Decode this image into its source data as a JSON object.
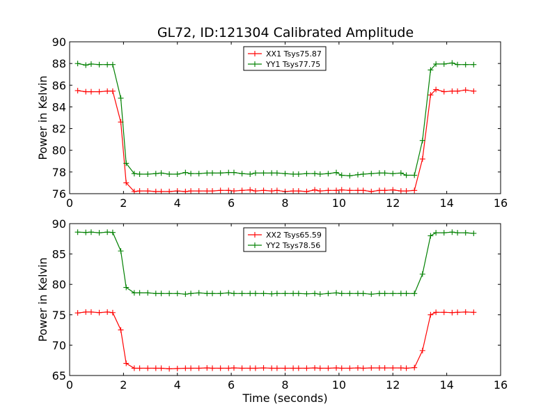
{
  "figure": {
    "title": "GL72, ID:121304 Calibrated Amplitude"
  },
  "chart_data": [
    {
      "type": "line",
      "title": "GL72, ID:121304 Calibrated Amplitude",
      "xlabel": "",
      "ylabel": "Power in Kelvin",
      "xlim": [
        0,
        16
      ],
      "ylim": [
        76,
        90
      ],
      "xticks": [
        0,
        2,
        4,
        6,
        8,
        10,
        12,
        14,
        16
      ],
      "yticks": [
        76,
        78,
        80,
        82,
        84,
        86,
        88,
        90
      ],
      "grid": false,
      "legend_position": "top-center",
      "x": [
        0.3,
        0.6,
        0.8,
        1.1,
        1.4,
        1.6,
        1.9,
        2.1,
        2.4,
        2.6,
        2.9,
        3.2,
        3.4,
        3.7,
        4.0,
        4.3,
        4.5,
        4.8,
        5.1,
        5.3,
        5.6,
        5.9,
        6.1,
        6.4,
        6.7,
        6.9,
        7.2,
        7.5,
        7.7,
        8.0,
        8.3,
        8.5,
        8.8,
        9.1,
        9.3,
        9.6,
        9.9,
        10.1,
        10.4,
        10.7,
        10.9,
        11.2,
        11.5,
        11.7,
        12.0,
        12.3,
        12.5,
        12.8,
        13.1,
        13.4,
        13.6,
        13.9,
        14.2,
        14.4,
        14.7,
        15.0
      ],
      "series": [
        {
          "name": "XX1 Tsys75.87",
          "color": "#ff0000",
          "values": [
            85.5,
            85.4,
            85.4,
            85.4,
            85.45,
            85.45,
            82.6,
            77.0,
            76.2,
            76.25,
            76.25,
            76.2,
            76.2,
            76.2,
            76.25,
            76.2,
            76.25,
            76.25,
            76.25,
            76.25,
            76.3,
            76.3,
            76.25,
            76.3,
            76.35,
            76.25,
            76.3,
            76.25,
            76.3,
            76.2,
            76.25,
            76.25,
            76.2,
            76.35,
            76.25,
            76.3,
            76.3,
            76.35,
            76.3,
            76.3,
            76.3,
            76.2,
            76.3,
            76.3,
            76.35,
            76.25,
            76.25,
            76.3,
            79.2,
            85.1,
            85.6,
            85.4,
            85.45,
            85.45,
            85.55,
            85.45
          ]
        },
        {
          "name": "YY1 Tsys77.75",
          "color": "#008000",
          "values": [
            88.0,
            87.85,
            87.95,
            87.9,
            87.9,
            87.9,
            84.8,
            78.8,
            77.85,
            77.8,
            77.8,
            77.85,
            77.9,
            77.8,
            77.8,
            77.95,
            77.85,
            77.85,
            77.9,
            77.9,
            77.9,
            77.95,
            77.95,
            77.85,
            77.8,
            77.9,
            77.9,
            77.9,
            77.9,
            77.85,
            77.8,
            77.8,
            77.85,
            77.85,
            77.8,
            77.85,
            77.95,
            77.7,
            77.65,
            77.75,
            77.8,
            77.85,
            77.9,
            77.9,
            77.85,
            77.9,
            77.7,
            77.7,
            80.9,
            87.4,
            87.95,
            87.95,
            88.05,
            87.9,
            87.9,
            87.9
          ]
        }
      ]
    },
    {
      "type": "line",
      "title": "",
      "xlabel": "Time (seconds)",
      "ylabel": "Power in Kelvin",
      "xlim": [
        0,
        16
      ],
      "ylim": [
        65,
        90
      ],
      "xticks": [
        0,
        2,
        4,
        6,
        8,
        10,
        12,
        14,
        16
      ],
      "yticks": [
        65,
        70,
        75,
        80,
        85,
        90
      ],
      "grid": false,
      "legend_position": "top-center",
      "x": [
        0.3,
        0.6,
        0.8,
        1.1,
        1.4,
        1.6,
        1.9,
        2.1,
        2.4,
        2.6,
        2.9,
        3.2,
        3.4,
        3.7,
        4.0,
        4.3,
        4.5,
        4.8,
        5.1,
        5.3,
        5.6,
        5.9,
        6.1,
        6.4,
        6.7,
        6.9,
        7.2,
        7.5,
        7.7,
        8.0,
        8.3,
        8.5,
        8.8,
        9.1,
        9.3,
        9.6,
        9.9,
        10.1,
        10.4,
        10.7,
        10.9,
        11.2,
        11.5,
        11.7,
        12.0,
        12.3,
        12.5,
        12.8,
        13.1,
        13.4,
        13.6,
        13.9,
        14.2,
        14.4,
        14.7,
        15.0
      ],
      "series": [
        {
          "name": "XX2 Tsys65.59",
          "color": "#ff0000",
          "values": [
            75.3,
            75.45,
            75.45,
            75.35,
            75.45,
            75.35,
            72.5,
            67.0,
            66.2,
            66.2,
            66.2,
            66.2,
            66.2,
            66.1,
            66.15,
            66.2,
            66.2,
            66.2,
            66.25,
            66.2,
            66.2,
            66.2,
            66.25,
            66.2,
            66.2,
            66.2,
            66.25,
            66.2,
            66.2,
            66.2,
            66.2,
            66.2,
            66.2,
            66.25,
            66.2,
            66.2,
            66.25,
            66.2,
            66.2,
            66.25,
            66.2,
            66.25,
            66.25,
            66.25,
            66.25,
            66.25,
            66.2,
            66.3,
            69.1,
            75.0,
            75.4,
            75.4,
            75.35,
            75.4,
            75.45,
            75.4
          ]
        },
        {
          "name": "YY2 Tsys78.56",
          "color": "#008000",
          "values": [
            88.6,
            88.55,
            88.6,
            88.5,
            88.6,
            88.55,
            85.5,
            79.5,
            78.6,
            78.6,
            78.6,
            78.5,
            78.5,
            78.5,
            78.5,
            78.4,
            78.5,
            78.6,
            78.5,
            78.5,
            78.5,
            78.6,
            78.5,
            78.5,
            78.5,
            78.5,
            78.5,
            78.45,
            78.5,
            78.5,
            78.5,
            78.5,
            78.45,
            78.5,
            78.4,
            78.5,
            78.6,
            78.5,
            78.5,
            78.5,
            78.5,
            78.4,
            78.5,
            78.5,
            78.5,
            78.5,
            78.5,
            78.5,
            81.7,
            88.0,
            88.5,
            88.5,
            88.6,
            88.5,
            88.5,
            88.4
          ]
        }
      ]
    }
  ]
}
